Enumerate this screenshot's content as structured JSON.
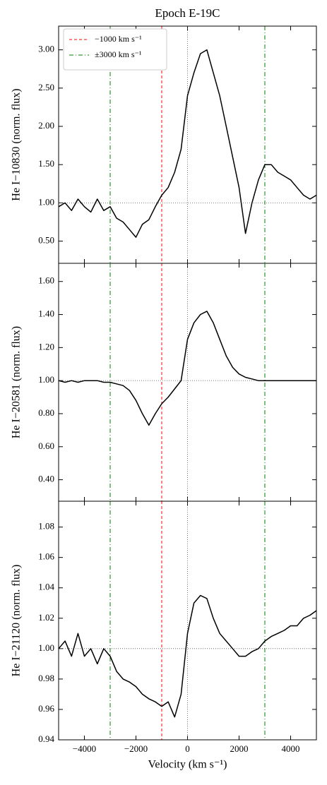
{
  "chart_data": [
    {
      "type": "line",
      "title": "Epoch E-19C",
      "ylabel": "He I−10830 (norm. flux)",
      "x": [
        -5000,
        -4750,
        -4500,
        -4250,
        -4000,
        -3750,
        -3500,
        -3250,
        -3000,
        -2750,
        -2500,
        -2250,
        -2000,
        -1750,
        -1500,
        -1250,
        -1000,
        -750,
        -500,
        -250,
        0,
        250,
        500,
        750,
        1000,
        1250,
        1500,
        1750,
        2000,
        2250,
        2500,
        2750,
        3000,
        3250,
        3500,
        3750,
        4000,
        4250,
        4500,
        4750,
        5000
      ],
      "series": [
        {
          "color": "#000000",
          "values": [
            0.95,
            1.0,
            0.9,
            1.05,
            0.95,
            0.88,
            1.05,
            0.9,
            0.95,
            0.8,
            0.75,
            0.65,
            0.55,
            0.72,
            0.78,
            0.95,
            1.1,
            1.2,
            1.4,
            1.7,
            2.4,
            2.7,
            2.95,
            3.0,
            2.7,
            2.4,
            2.0,
            1.6,
            1.2,
            0.6,
            1.0,
            1.3,
            1.5,
            1.5,
            1.4,
            1.35,
            1.3,
            1.2,
            1.1,
            1.05,
            1.1
          ]
        }
      ],
      "xlim": [
        -5000,
        5000
      ],
      "ylim": [
        0.21,
        3.31
      ],
      "yticks": [
        {
          "value": 0.5,
          "label": "0.50"
        },
        {
          "value": 1,
          "label": "1.00"
        },
        {
          "value": 1.5,
          "label": "1.50"
        },
        {
          "value": 2,
          "label": "2.00"
        },
        {
          "value": 2.5,
          "label": "2.50"
        },
        {
          "value": 3,
          "label": "3.00"
        }
      ],
      "hlines": [
        1
      ],
      "vlines": [
        0
      ],
      "reference_lines": [
        {
          "name": "−1000 km s⁻¹",
          "color": "#ff0000",
          "dash": "dashed",
          "x": [
            -1000
          ]
        },
        {
          "name": "±3000 km s⁻¹",
          "color": "#008000",
          "dash": "dashdot",
          "x": [
            -3000,
            3000
          ]
        }
      ],
      "legend": "upper left"
    },
    {
      "type": "line",
      "ylabel": "He I−20581 (norm. flux)",
      "x": [
        -5000,
        -4750,
        -4500,
        -4250,
        -4000,
        -3750,
        -3500,
        -3250,
        -3000,
        -2750,
        -2500,
        -2250,
        -2000,
        -1750,
        -1500,
        -1250,
        -1000,
        -750,
        -500,
        -250,
        0,
        250,
        500,
        750,
        1000,
        1250,
        1500,
        1750,
        2000,
        2250,
        2500,
        2750,
        3000,
        3250,
        3500,
        3750,
        4000,
        4250,
        4500,
        4750,
        5000
      ],
      "series": [
        {
          "color": "#000000",
          "values": [
            1.0,
            0.99,
            1.0,
            0.99,
            1.0,
            1.0,
            1.0,
            0.99,
            0.99,
            0.98,
            0.97,
            0.94,
            0.88,
            0.8,
            0.73,
            0.8,
            0.86,
            0.9,
            0.95,
            1.0,
            1.25,
            1.35,
            1.4,
            1.42,
            1.35,
            1.25,
            1.15,
            1.08,
            1.04,
            1.02,
            1.01,
            1.0,
            1.0,
            1.0,
            1.0,
            1.0,
            1.0,
            1.0,
            1.0,
            1.0,
            1.0
          ]
        }
      ],
      "xlim": [
        -5000,
        5000
      ],
      "ylim": [
        0.27,
        1.71
      ],
      "yticks": [
        {
          "value": 0.4,
          "label": "0.40"
        },
        {
          "value": 0.6,
          "label": "0.60"
        },
        {
          "value": 0.8,
          "label": "0.80"
        },
        {
          "value": 1,
          "label": "1.00"
        },
        {
          "value": 1.2,
          "label": "1.20"
        },
        {
          "value": 1.4,
          "label": "1.40"
        },
        {
          "value": 1.6,
          "label": "1.60"
        }
      ],
      "hlines": [
        1
      ],
      "vlines": [
        0
      ]
    },
    {
      "type": "line",
      "ylabel": "He I−21120 (norm. flux)",
      "xlabel": "Velocity (km s⁻¹)",
      "x": [
        -5000,
        -4750,
        -4500,
        -4250,
        -4000,
        -3750,
        -3500,
        -3250,
        -3000,
        -2750,
        -2500,
        -2250,
        -2000,
        -1750,
        -1500,
        -1250,
        -1000,
        -750,
        -500,
        -250,
        0,
        250,
        500,
        750,
        1000,
        1250,
        1500,
        1750,
        2000,
        2250,
        2500,
        2750,
        3000,
        3250,
        3500,
        3750,
        4000,
        4250,
        4500,
        4750,
        5000
      ],
      "series": [
        {
          "color": "#000000",
          "values": [
            1.0,
            1.005,
            0.995,
            1.01,
            0.995,
            1.0,
            0.99,
            1.0,
            0.995,
            0.985,
            0.98,
            0.978,
            0.975,
            0.97,
            0.967,
            0.965,
            0.962,
            0.965,
            0.955,
            0.97,
            1.01,
            1.03,
            1.035,
            1.033,
            1.02,
            1.01,
            1.005,
            1.0,
            0.995,
            0.995,
            0.998,
            1.0,
            1.005,
            1.008,
            1.01,
            1.012,
            1.015,
            1.015,
            1.02,
            1.022,
            1.025
          ]
        }
      ],
      "xlim": [
        -5000,
        5000
      ],
      "ylim": [
        0.94,
        1.097
      ],
      "xticks": [
        {
          "value": -4000,
          "label": "−4000"
        },
        {
          "value": -2000,
          "label": "−2000"
        },
        0,
        2000,
        4000
      ],
      "yticks": [
        {
          "value": 0.94,
          "label": "0.94"
        },
        {
          "value": 0.96,
          "label": "0.96"
        },
        {
          "value": 0.98,
          "label": "0.98"
        },
        {
          "value": 1,
          "label": "1.00"
        },
        {
          "value": 1.02,
          "label": "1.02"
        },
        {
          "value": 1.04,
          "label": "1.04"
        },
        {
          "value": 1.06,
          "label": "1.06"
        },
        {
          "value": 1.08,
          "label": "1.08"
        }
      ],
      "hlines": [
        1
      ],
      "vlines": [
        0
      ]
    }
  ]
}
